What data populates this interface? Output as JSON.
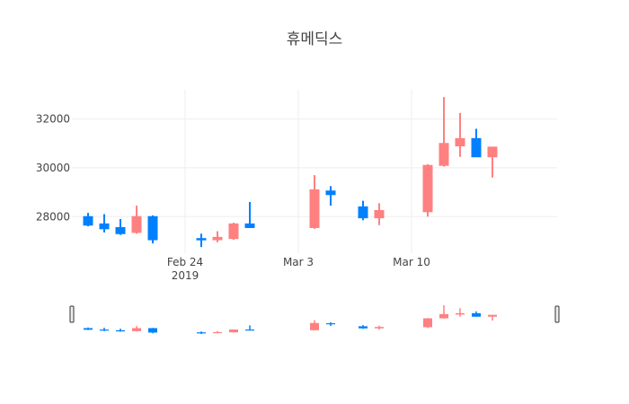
{
  "chart_data": {
    "type": "candlestick",
    "title": "휴메딕스",
    "xlabel": "",
    "ylabel": "",
    "increasing_color": "#ff8080",
    "decreasing_color": "#0080ff",
    "xlim": [
      "2019-02-17",
      "2019-03-19"
    ],
    "ylim": [
      26500,
      33200
    ],
    "y_ticks": [
      28000,
      30000,
      32000
    ],
    "y_tick_labels": [
      "28000",
      "30000",
      "32000"
    ],
    "x_ticks": [
      "2019-02-24",
      "2019-03-03",
      "2019-03-10"
    ],
    "x_tick_labels": [
      "Feb 24",
      "Mar 3",
      "Mar 10"
    ],
    "x_tick_year_label": "2019",
    "grid": true,
    "rangeslider": true,
    "candles": [
      {
        "date": "2019-02-18",
        "open": 28000,
        "high": 28150,
        "low": 27600,
        "close": 27650
      },
      {
        "date": "2019-02-19",
        "open": 27700,
        "high": 28100,
        "low": 27350,
        "close": 27500
      },
      {
        "date": "2019-02-20",
        "open": 27550,
        "high": 27900,
        "low": 27250,
        "close": 27300
      },
      {
        "date": "2019-02-21",
        "open": 27350,
        "high": 28450,
        "low": 27300,
        "close": 28000
      },
      {
        "date": "2019-02-22",
        "open": 28000,
        "high": 28050,
        "low": 26900,
        "close": 27050
      },
      {
        "date": "2019-02-25",
        "open": 27100,
        "high": 27300,
        "low": 26750,
        "close": 27050
      },
      {
        "date": "2019-02-26",
        "open": 27050,
        "high": 27400,
        "low": 26950,
        "close": 27150
      },
      {
        "date": "2019-02-27",
        "open": 27100,
        "high": 27750,
        "low": 27050,
        "close": 27700
      },
      {
        "date": "2019-02-28",
        "open": 27700,
        "high": 28600,
        "low": 27550,
        "close": 27550
      },
      {
        "date": "2019-03-04",
        "open": 27550,
        "high": 29700,
        "low": 27500,
        "close": 29100
      },
      {
        "date": "2019-03-05",
        "open": 29050,
        "high": 29250,
        "low": 28450,
        "close": 28900
      },
      {
        "date": "2019-03-07",
        "open": 28400,
        "high": 28650,
        "low": 27850,
        "close": 27950
      },
      {
        "date": "2019-03-08",
        "open": 27950,
        "high": 28550,
        "low": 27650,
        "close": 28250
      },
      {
        "date": "2019-03-11",
        "open": 28200,
        "high": 30150,
        "low": 28000,
        "close": 30100
      },
      {
        "date": "2019-03-12",
        "open": 30100,
        "high": 32900,
        "low": 30050,
        "close": 31000
      },
      {
        "date": "2019-03-13",
        "open": 30900,
        "high": 32250,
        "low": 30450,
        "close": 31200
      },
      {
        "date": "2019-03-14",
        "open": 31200,
        "high": 31600,
        "low": 30450,
        "close": 30450
      },
      {
        "date": "2019-03-15",
        "open": 30450,
        "high": 30850,
        "low": 29600,
        "close": 30850
      }
    ]
  }
}
